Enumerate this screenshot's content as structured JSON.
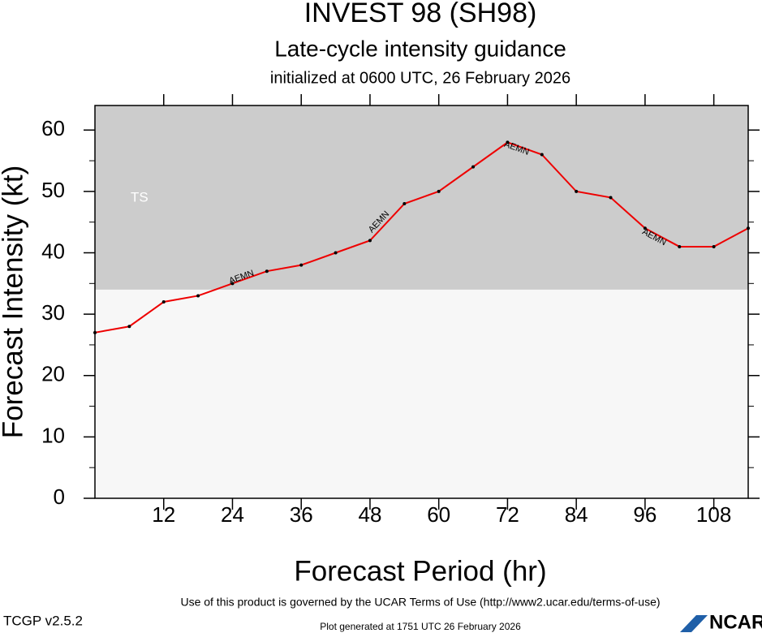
{
  "chart_data": {
    "type": "line",
    "title": "INVEST 98 (SH98)",
    "subtitle": "Late-cycle intensity guidance",
    "initialized": "initialized at 0600 UTC, 26 February 2026",
    "x_label": "Forecast Period (hr)",
    "y_label": "Forecast Intensity (kt)",
    "x": [
      0,
      6,
      12,
      18,
      24,
      30,
      36,
      42,
      48,
      54,
      60,
      66,
      72,
      78,
      84,
      90,
      96,
      102,
      108,
      114
    ],
    "series": [
      {
        "name": "AEMN",
        "color": "#ee0000",
        "values": [
          27,
          28,
          32,
          33,
          35,
          37,
          38,
          40,
          42,
          48,
          50,
          54,
          58,
          56,
          50,
          49,
          44,
          41,
          41,
          44
        ]
      }
    ],
    "xlim": [
      0,
      114
    ],
    "ylim": [
      0,
      64
    ],
    "xticks": [
      12,
      24,
      36,
      48,
      60,
      72,
      84,
      96,
      108
    ],
    "yticks": [
      0,
      10,
      20,
      30,
      40,
      50,
      60
    ],
    "bands": [
      {
        "label": "TS",
        "from": 34,
        "to": 64,
        "color": "#cccccc"
      }
    ],
    "background": "#f7f7f7",
    "terms": "Use of this product is governed by the UCAR Terms of Use (http://www2.ucar.edu/terms-of-use)",
    "version": "TCGP v2.5.2",
    "generated": "Plot generated at 1751 UTC   26 February 2026",
    "logo": "NCAR"
  }
}
